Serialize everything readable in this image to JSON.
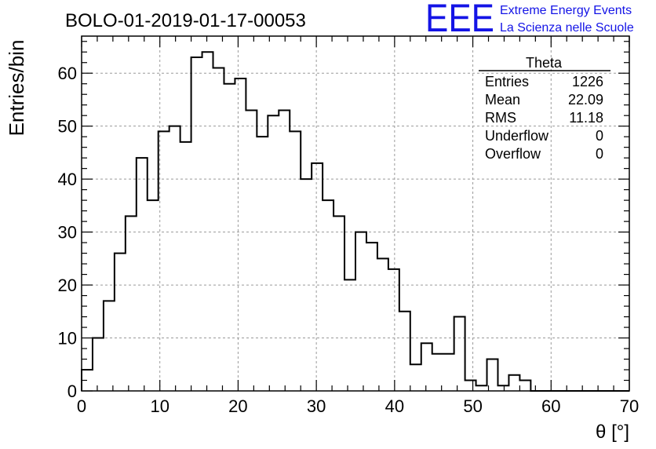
{
  "chart_data": {
    "type": "bar",
    "title": "BOLO-01-2019-01-17-00053",
    "xlabel": "θ [°]",
    "ylabel": "Entries/bin",
    "xlim": [
      0,
      70
    ],
    "ylim": [
      0,
      67
    ],
    "xticks": [
      "0",
      "10",
      "20",
      "30",
      "40",
      "50",
      "60",
      "70"
    ],
    "yticks": [
      "0",
      "10",
      "20",
      "30",
      "40",
      "50",
      "60"
    ],
    "grid": true,
    "bin_edges_start": 0,
    "bin_width": 1.4,
    "values": [
      4,
      10,
      17,
      26,
      33,
      44,
      36,
      49,
      50,
      47,
      63,
      64,
      61,
      58,
      59,
      53,
      48,
      52,
      53,
      49,
      40,
      43,
      36,
      33,
      21,
      30,
      28,
      25,
      23,
      15,
      5,
      9,
      7,
      7,
      14,
      2,
      1,
      6,
      1,
      3,
      2,
      0,
      0,
      0,
      0,
      0,
      0,
      0,
      0,
      0
    ],
    "stats": {
      "name": "Theta",
      "rows": [
        {
          "label": "Entries",
          "value": "1226"
        },
        {
          "label": "Mean",
          "value": "22.09"
        },
        {
          "label": "RMS",
          "value": "11.18"
        },
        {
          "label": "Underflow",
          "value": "0"
        },
        {
          "label": "Overflow",
          "value": "0"
        }
      ]
    }
  },
  "logo": {
    "mark": "EEE",
    "line1": "Extreme Energy Events",
    "line2": "La Scienza nelle Scuole",
    "color": "#1414e6"
  }
}
